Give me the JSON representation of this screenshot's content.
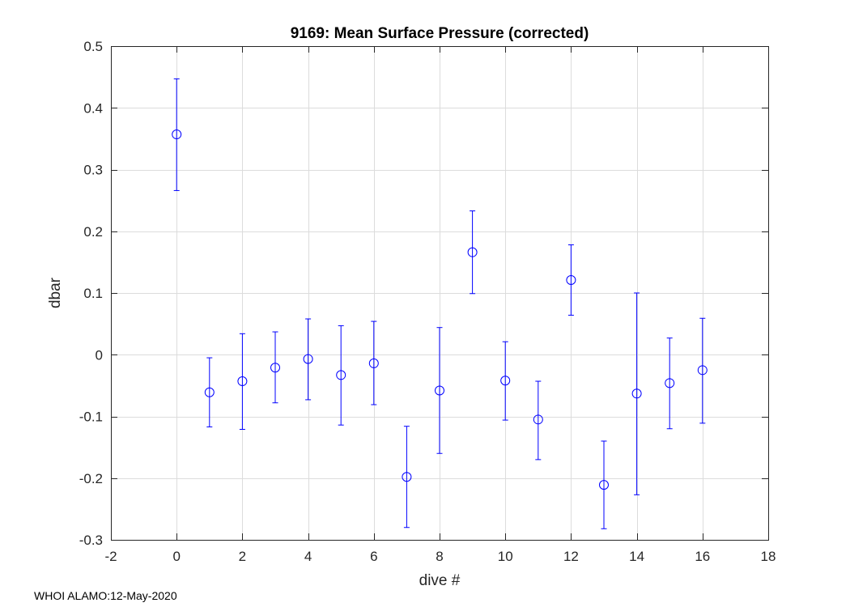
{
  "footer": "WHOI ALAMO:12-May-2020",
  "chart_data": {
    "type": "scatter",
    "title": "9169: Mean Surface Pressure (corrected)",
    "xlabel": "dive #",
    "ylabel": "dbar",
    "xlim": [
      -2,
      18
    ],
    "ylim": [
      -0.3,
      0.5
    ],
    "xticks": [
      -2,
      0,
      2,
      4,
      6,
      8,
      10,
      12,
      14,
      16,
      18
    ],
    "xtick_labels": [
      "-2",
      "0",
      "2",
      "4",
      "6",
      "8",
      "10",
      "12",
      "14",
      "16",
      "18"
    ],
    "yticks": [
      -0.3,
      -0.2,
      -0.1,
      0,
      0.1,
      0.2,
      0.3,
      0.4,
      0.5
    ],
    "ytick_labels": [
      "-0.3",
      "-0.2",
      "-0.1",
      "0",
      "0.1",
      "0.2",
      "0.3",
      "0.4",
      "0.5"
    ],
    "grid": true,
    "marker": "open-circle",
    "color": "#0000ff",
    "x": [
      0,
      1,
      2,
      3,
      4,
      5,
      6,
      7,
      8,
      9,
      10,
      11,
      12,
      13,
      14,
      15,
      16
    ],
    "y": [
      0.357,
      -0.061,
      -0.043,
      -0.021,
      -0.007,
      -0.033,
      -0.014,
      -0.198,
      -0.058,
      0.166,
      -0.042,
      -0.105,
      0.121,
      -0.211,
      -0.063,
      -0.046,
      -0.025
    ],
    "err_low": [
      0.266,
      -0.117,
      -0.121,
      -0.078,
      -0.073,
      -0.114,
      -0.081,
      -0.28,
      -0.16,
      0.099,
      -0.106,
      -0.17,
      0.064,
      -0.282,
      -0.227,
      -0.12,
      -0.111
    ],
    "err_high": [
      0.447,
      -0.005,
      0.034,
      0.037,
      0.058,
      0.047,
      0.054,
      -0.116,
      0.044,
      0.233,
      0.021,
      -0.043,
      0.178,
      -0.14,
      0.1,
      0.027,
      0.059
    ]
  }
}
